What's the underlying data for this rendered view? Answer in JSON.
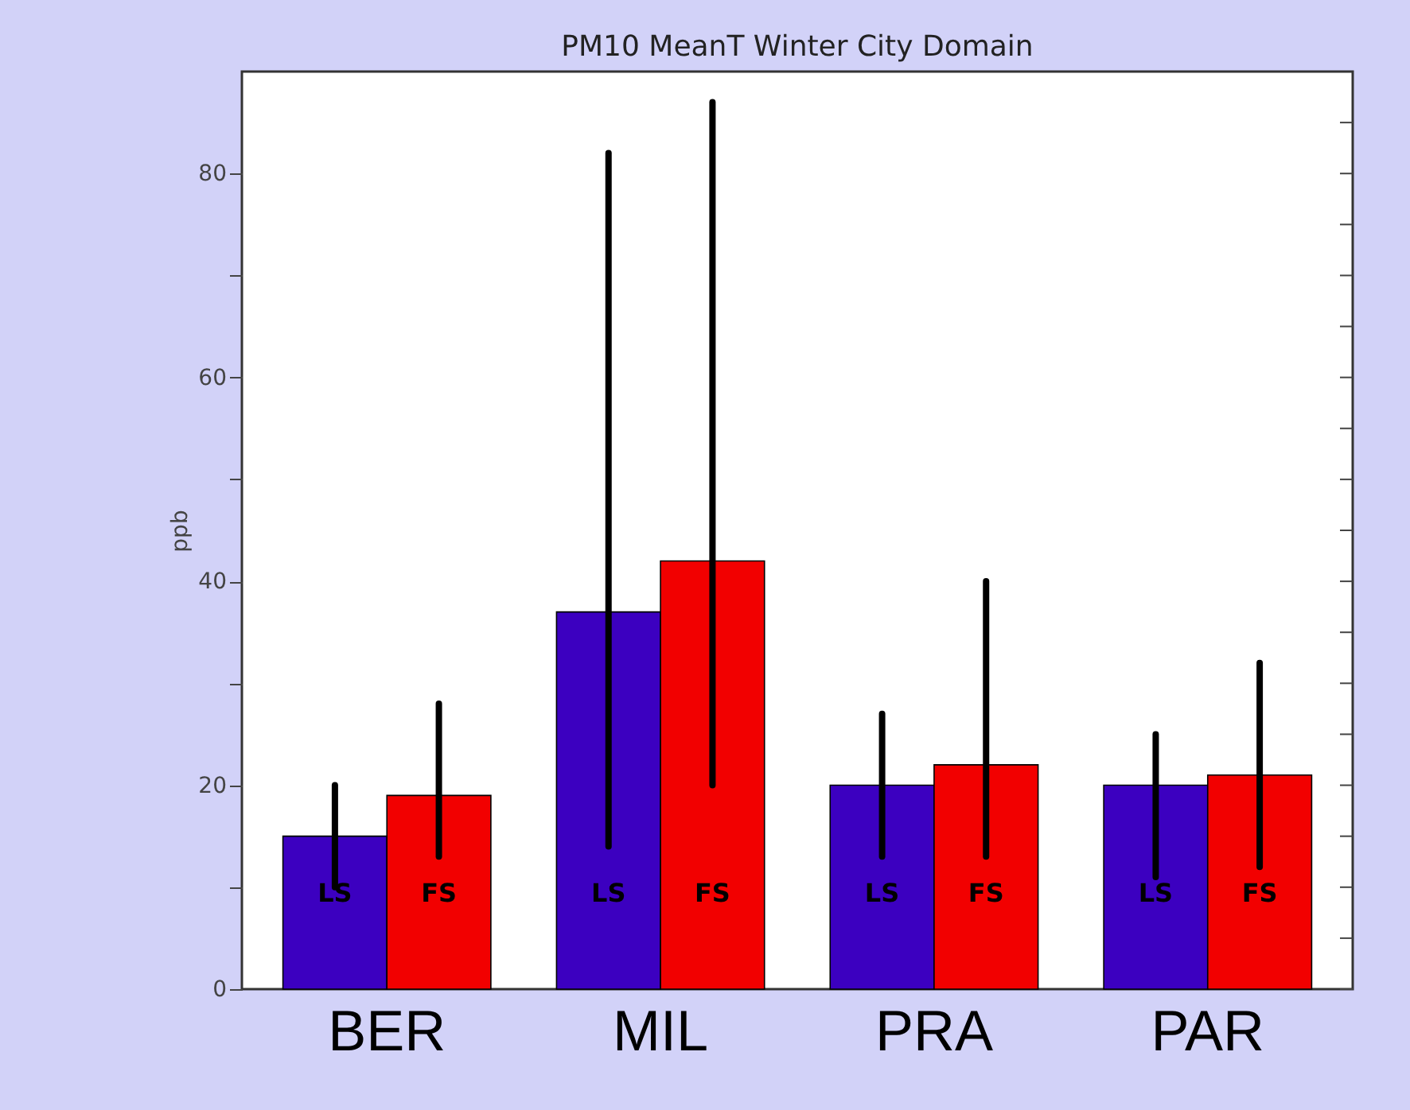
{
  "chart_data": {
    "type": "bar",
    "title": "PM10 MeanT Winter City Domain",
    "ylabel": "ppb",
    "categories": [
      "BER",
      "MIL",
      "PRA",
      "PAR"
    ],
    "series": [
      {
        "name": "LS",
        "color": "#3c00c0",
        "values": [
          15,
          37,
          20,
          20
        ],
        "errors": [
          [
            10,
            20
          ],
          [
            14,
            82
          ],
          [
            13,
            27
          ],
          [
            11,
            25
          ]
        ]
      },
      {
        "name": "FS",
        "color": "#f20000",
        "values": [
          19,
          42,
          22,
          21
        ],
        "errors": [
          [
            13,
            28
          ],
          [
            20,
            87
          ],
          [
            13,
            40
          ],
          [
            12,
            32
          ]
        ]
      }
    ],
    "ylim": [
      0,
      90
    ],
    "yticks": [
      0,
      {
        "value": 5,
        "label": null
      },
      {
        "value": 10,
        "label": null
      },
      {
        "value": 15,
        "label": null
      },
      20,
      {
        "value": 25,
        "label": null
      },
      {
        "value": 30,
        "label": null
      },
      {
        "value": 35,
        "label": null
      },
      40,
      {
        "value": 45,
        "label": null
      },
      {
        "value": 50,
        "label": null
      },
      {
        "value": 55,
        "label": null
      },
      60,
      {
        "value": 65,
        "label": null
      },
      {
        "value": 70,
        "label": null
      },
      {
        "value": 75,
        "label": null
      },
      80,
      {
        "value": 85,
        "label": null
      }
    ],
    "grid": false
  }
}
